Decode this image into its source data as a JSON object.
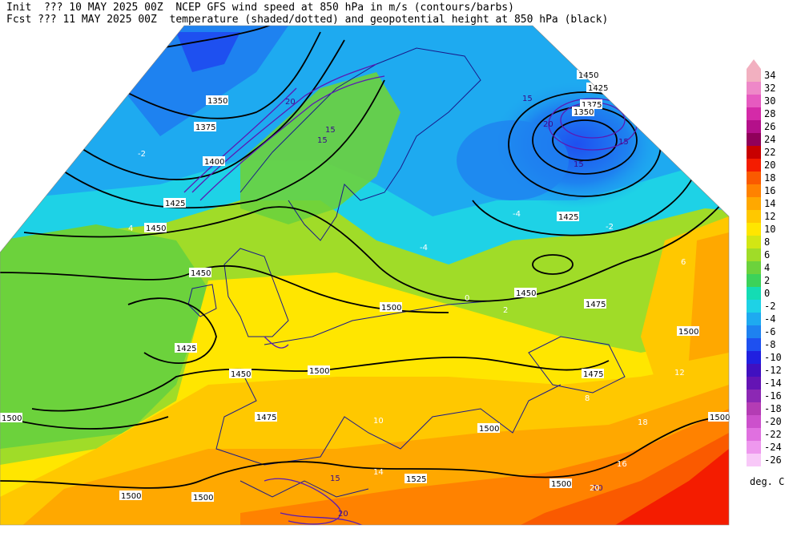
{
  "header": {
    "line1": "Init  ??? 10 MAY 2025 00Z  NCEP GFS wind speed at 850 hPa in m/s (contours/barbs)",
    "line2": "Fcst ??? 11 MAY 2025 00Z  temperature (shaded/dotted) and geopotential height at 850 hPa (black)"
  },
  "legend": {
    "units": "deg. C",
    "items": [
      {
        "label": "34",
        "color": "#f2b0c0"
      },
      {
        "label": "32",
        "color": "#ee88c8"
      },
      {
        "label": "30",
        "color": "#e65ac0"
      },
      {
        "label": "28",
        "color": "#d42aa8"
      },
      {
        "label": "26",
        "color": "#b4108a"
      },
      {
        "label": "24",
        "color": "#90005a"
      },
      {
        "label": "22",
        "color": "#c80000"
      },
      {
        "label": "20",
        "color": "#f41c00"
      },
      {
        "label": "18",
        "color": "#fa5a00"
      },
      {
        "label": "16",
        "color": "#ff8200"
      },
      {
        "label": "14",
        "color": "#ffa800"
      },
      {
        "label": "12",
        "color": "#ffc800"
      },
      {
        "label": "10",
        "color": "#ffe600"
      },
      {
        "label": "8",
        "color": "#d2e614"
      },
      {
        "label": "6",
        "color": "#a0dc28"
      },
      {
        "label": "4",
        "color": "#6cd23c"
      },
      {
        "label": "2",
        "color": "#3cd25a"
      },
      {
        "label": "0",
        "color": "#14dcb4"
      },
      {
        "label": "-2",
        "color": "#1ed2e6"
      },
      {
        "label": "-4",
        "color": "#1eaaf0"
      },
      {
        "label": "-6",
        "color": "#1e82f0"
      },
      {
        "label": "-8",
        "color": "#1e50f0"
      },
      {
        "label": "-10",
        "color": "#2020e0"
      },
      {
        "label": "-12",
        "color": "#4010c0"
      },
      {
        "label": "-14",
        "color": "#6414b4"
      },
      {
        "label": "-16",
        "color": "#8c28b4"
      },
      {
        "label": "-18",
        "color": "#b43cb4"
      },
      {
        "label": "-20",
        "color": "#cc50cc"
      },
      {
        "label": "-22",
        "color": "#e070e0"
      },
      {
        "label": "-24",
        "color": "#ee98ee"
      },
      {
        "label": "-26",
        "color": "#f8c8f8"
      }
    ]
  },
  "map": {
    "height_labels": [
      "1350",
      "1375",
      "1400",
      "1425",
      "1450",
      "1450",
      "1425",
      "1450",
      "1500",
      "1500",
      "1525",
      "1500",
      "1500",
      "1475",
      "1500",
      "1450",
      "1425",
      "1375",
      "1350",
      "1450",
      "1425",
      "1500",
      "1500",
      "1475",
      "1500",
      "1475",
      "1500"
    ],
    "wind_labels": [
      "20",
      "15",
      "15",
      "20",
      "15",
      "15",
      "15",
      "20",
      "15",
      "20"
    ],
    "temp_labels": [
      "-2",
      "-4",
      "-2",
      "-4",
      "0",
      "2",
      "4",
      "6",
      "8",
      "10",
      "12",
      "14",
      "16",
      "18",
      "20"
    ],
    "colors": {
      "land_outline": "#1a1a8a",
      "height_contour": "#000000",
      "wind_contour": "#5a1ab4"
    }
  }
}
